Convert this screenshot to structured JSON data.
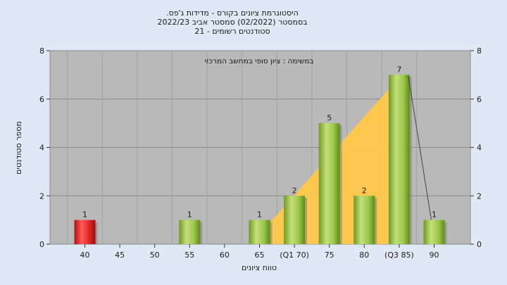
{
  "chart_data": {
    "type": "bar",
    "title_lines": [
      ".היסטוגרמת ציונים בקורס - מדידות ג'פס",
      "בסמסטר  (02/2022)  סמסטר אביב 2022/23",
      "סטודנטים רשומים - 21"
    ],
    "xlabel": "טווח ציונים",
    "ylabel": "מספר סטודנטים",
    "assignment_label": "במשימה : ציון סופי במחשב המרכזי",
    "categories": [
      "40",
      "45",
      "50",
      "55",
      "60",
      "65",
      "(Q1 70)",
      "75",
      "80",
      "(Q3 85)",
      "90"
    ],
    "values": [
      1,
      0,
      0,
      1,
      0,
      1,
      2,
      5,
      2,
      7,
      1
    ],
    "ylim": [
      0,
      8
    ],
    "yticks": [
      0,
      2,
      4,
      6,
      8
    ],
    "grid": true,
    "area_overlay": {
      "from_category": "65",
      "peak_category": "(Q3 85)",
      "to_category": "90"
    },
    "colors": {
      "low_bar": "#d42020",
      "bar": "#96c43c",
      "plot_bg": "#b9b9b9",
      "area": "#ffc84a",
      "page_bg": "#dfe9f5"
    }
  }
}
